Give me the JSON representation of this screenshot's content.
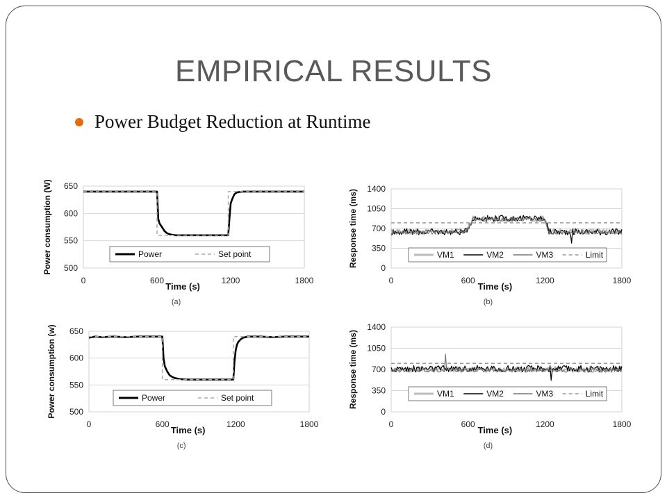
{
  "slide": {
    "title": "EMPIRICAL RESULTS",
    "bullet": "Power Budget Reduction at Runtime",
    "bullet_color": "#E46C0A"
  },
  "chart_data": [
    {
      "id": "a",
      "type": "line",
      "caption": "(a)",
      "xlabel": "Time (s)",
      "ylabel": "Power consumption (W)",
      "xlim": [
        0,
        1800
      ],
      "ylim": [
        500,
        650
      ],
      "xticks": [
        0,
        600,
        1200,
        1800
      ],
      "yticks": [
        500,
        550,
        600,
        650
      ],
      "grid": "horizontal",
      "legend_position": "bottom-center",
      "series": [
        {
          "name": "Power",
          "style": "solid-thick",
          "color": "#000000",
          "points": [
            [
              0,
              640
            ],
            [
              100,
              640
            ],
            [
              200,
              640
            ],
            [
              300,
              640
            ],
            [
              400,
              640
            ],
            [
              500,
              640
            ],
            [
              590,
              640
            ],
            [
              600,
              640
            ],
            [
              610,
              590
            ],
            [
              620,
              582
            ],
            [
              640,
              575
            ],
            [
              660,
              568
            ],
            [
              680,
              564
            ],
            [
              700,
              562
            ],
            [
              720,
              561
            ],
            [
              750,
              560
            ],
            [
              800,
              560
            ],
            [
              900,
              560
            ],
            [
              1000,
              560
            ],
            [
              1100,
              560
            ],
            [
              1160,
              560
            ],
            [
              1180,
              560
            ],
            [
              1190,
              590
            ],
            [
              1200,
              618
            ],
            [
              1210,
              625
            ],
            [
              1220,
              630
            ],
            [
              1230,
              635
            ],
            [
              1240,
              637
            ],
            [
              1260,
              639
            ],
            [
              1300,
              640
            ],
            [
              1400,
              640
            ],
            [
              1500,
              640
            ],
            [
              1600,
              640
            ],
            [
              1700,
              640
            ],
            [
              1800,
              640
            ]
          ]
        },
        {
          "name": "Set point",
          "style": "dashed",
          "color": "#AAAAAA",
          "points": [
            [
              0,
              640
            ],
            [
              600,
              640
            ],
            [
              600,
              560
            ],
            [
              1180,
              560
            ],
            [
              1180,
              640
            ],
            [
              1800,
              640
            ]
          ]
        }
      ]
    },
    {
      "id": "b",
      "type": "line",
      "caption": "(b)",
      "xlabel": "Time (s)",
      "ylabel": "Response time (ms)",
      "xlim": [
        0,
        1800
      ],
      "ylim": [
        0,
        1400
      ],
      "xticks": [
        0,
        600,
        1200,
        1800
      ],
      "yticks": [
        0,
        350,
        700,
        1050,
        1400
      ],
      "grid": "horizontal",
      "legend_position": "bottom",
      "series": [
        {
          "name": "VM1",
          "style": "solid-thick",
          "color": "#BBBBBB",
          "profile": [
            [
              0,
              650
            ],
            [
              580,
              650
            ],
            [
              640,
              870
            ],
            [
              1200,
              870
            ],
            [
              1230,
              650
            ],
            [
              1800,
              650
            ]
          ]
        },
        {
          "name": "VM2",
          "style": "solid",
          "color": "#000000",
          "profile": [
            [
              0,
              640
            ],
            [
              580,
              640
            ],
            [
              640,
              880
            ],
            [
              1200,
              880
            ],
            [
              1230,
              640
            ],
            [
              1800,
              640
            ]
          ]
        },
        {
          "name": "VM3",
          "style": "solid",
          "color": "#777777",
          "profile": [
            [
              0,
              630
            ],
            [
              580,
              630
            ],
            [
              640,
              860
            ],
            [
              1200,
              860
            ],
            [
              1230,
              630
            ],
            [
              1800,
              630
            ]
          ]
        },
        {
          "name": "Limit",
          "style": "dashed",
          "color": "#999999",
          "points": [
            [
              0,
              800
            ],
            [
              1800,
              800
            ]
          ]
        }
      ]
    },
    {
      "id": "c",
      "type": "line",
      "caption": "(c)",
      "xlabel": "Time (s)",
      "ylabel": "Power consumption (w)",
      "xlim": [
        0,
        1800
      ],
      "ylim": [
        500,
        650
      ],
      "xticks": [
        0,
        600,
        1200,
        1800
      ],
      "yticks": [
        500,
        550,
        600,
        650
      ],
      "grid": "horizontal",
      "legend_position": "bottom-center",
      "series": [
        {
          "name": "Power",
          "style": "solid-thick",
          "color": "#000000",
          "points": [
            [
              0,
              638
            ],
            [
              50,
              640
            ],
            [
              100,
              639
            ],
            [
              200,
              640
            ],
            [
              300,
              639
            ],
            [
              400,
              640
            ],
            [
              500,
              640
            ],
            [
              590,
              640
            ],
            [
              600,
              640
            ],
            [
              610,
              600
            ],
            [
              620,
              585
            ],
            [
              640,
              575
            ],
            [
              660,
              568
            ],
            [
              680,
              565
            ],
            [
              700,
              563
            ],
            [
              740,
              561
            ],
            [
              800,
              560
            ],
            [
              900,
              560
            ],
            [
              1000,
              560
            ],
            [
              1100,
              560
            ],
            [
              1160,
              560
            ],
            [
              1180,
              560
            ],
            [
              1190,
              595
            ],
            [
              1200,
              615
            ],
            [
              1210,
              625
            ],
            [
              1220,
              630
            ],
            [
              1240,
              635
            ],
            [
              1260,
              638
            ],
            [
              1300,
              640
            ],
            [
              1400,
              640
            ],
            [
              1500,
              639
            ],
            [
              1600,
              640
            ],
            [
              1700,
              640
            ],
            [
              1800,
              640
            ]
          ]
        },
        {
          "name": "Set point",
          "style": "dashed",
          "color": "#AAAAAA",
          "points": [
            [
              0,
              640
            ],
            [
              600,
              640
            ],
            [
              600,
              560
            ],
            [
              1180,
              560
            ],
            [
              1180,
              640
            ],
            [
              1800,
              640
            ]
          ]
        }
      ]
    },
    {
      "id": "d",
      "type": "line",
      "caption": "(d)",
      "xlabel": "Time (s)",
      "ylabel": "Response time (ms)",
      "xlim": [
        0,
        1800
      ],
      "ylim": [
        0,
        1400
      ],
      "xticks": [
        0,
        600,
        1200,
        1800
      ],
      "yticks": [
        0,
        350,
        700,
        1050,
        1400
      ],
      "grid": "horizontal",
      "legend_position": "bottom",
      "series": [
        {
          "name": "VM1",
          "style": "solid-thick",
          "color": "#BBBBBB",
          "profile": [
            [
              0,
              700
            ],
            [
              1800,
              700
            ]
          ]
        },
        {
          "name": "VM2",
          "style": "solid",
          "color": "#000000",
          "profile": [
            [
              0,
              710
            ],
            [
              1800,
              710
            ]
          ]
        },
        {
          "name": "VM3",
          "style": "solid",
          "color": "#777777",
          "profile": [
            [
              0,
              690
            ],
            [
              1800,
              690
            ]
          ]
        },
        {
          "name": "Limit",
          "style": "dashed",
          "color": "#999999",
          "points": [
            [
              0,
              800
            ],
            [
              1800,
              800
            ]
          ]
        }
      ]
    }
  ]
}
